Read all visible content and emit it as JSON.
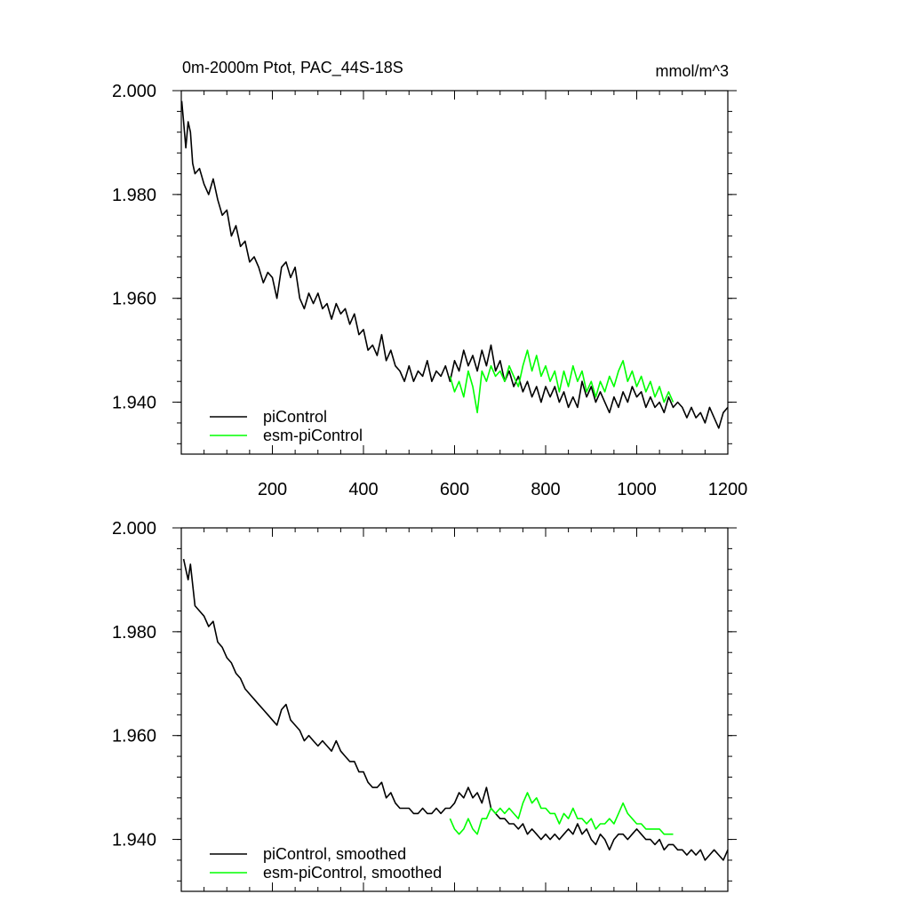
{
  "chart_data": [
    {
      "id": "raw",
      "type": "line",
      "title_left": "0m-2000m Ptot, PAC_44S-18S",
      "title_right": "mmol/m^3",
      "xlim": [
        0,
        1200
      ],
      "ylim": [
        1.93,
        2.0
      ],
      "xticks": [
        200,
        400,
        600,
        800,
        1000,
        1200
      ],
      "xtick_labels": [
        "200",
        "400",
        "600",
        "800",
        "1000",
        "1200"
      ],
      "yticks": [
        2.0,
        1.98,
        1.96,
        1.94
      ],
      "ytick_labels": [
        "2.000",
        "1.980",
        "1.960",
        "1.940"
      ],
      "grid": false,
      "legend_position": "bottom-left",
      "series": [
        {
          "name": "piControl",
          "color": "#000000",
          "x": [
            1,
            5,
            10,
            15,
            20,
            25,
            30,
            40,
            50,
            60,
            70,
            80,
            90,
            100,
            110,
            120,
            130,
            140,
            150,
            160,
            170,
            180,
            190,
            200,
            210,
            215,
            220,
            230,
            240,
            250,
            260,
            270,
            280,
            290,
            300,
            310,
            320,
            330,
            340,
            350,
            360,
            370,
            380,
            390,
            400,
            410,
            420,
            430,
            440,
            450,
            460,
            470,
            480,
            490,
            500,
            510,
            520,
            530,
            540,
            550,
            560,
            570,
            580,
            590,
            600,
            610,
            620,
            630,
            640,
            650,
            660,
            670,
            680,
            690,
            700,
            710,
            720,
            730,
            740,
            750,
            760,
            770,
            780,
            790,
            800,
            810,
            820,
            830,
            840,
            850,
            860,
            870,
            880,
            890,
            900,
            910,
            920,
            930,
            940,
            950,
            960,
            970,
            980,
            990,
            1000,
            1010,
            1020,
            1030,
            1040,
            1050,
            1060,
            1070,
            1080,
            1090,
            1100,
            1110,
            1120,
            1130,
            1140,
            1150,
            1160,
            1170,
            1180,
            1190,
            1200
          ],
          "values": [
            1.998,
            1.994,
            1.989,
            1.994,
            1.992,
            1.986,
            1.984,
            1.985,
            1.982,
            1.98,
            1.983,
            1.979,
            1.976,
            1.977,
            1.972,
            1.974,
            1.97,
            1.971,
            1.967,
            1.968,
            1.966,
            1.963,
            1.965,
            1.964,
            1.96,
            1.963,
            1.966,
            1.967,
            1.964,
            1.966,
            1.96,
            1.958,
            1.961,
            1.959,
            1.961,
            1.958,
            1.959,
            1.956,
            1.959,
            1.957,
            1.958,
            1.955,
            1.957,
            1.953,
            1.954,
            1.95,
            1.951,
            1.949,
            1.953,
            1.948,
            1.95,
            1.947,
            1.946,
            1.944,
            1.947,
            1.944,
            1.946,
            1.945,
            1.948,
            1.944,
            1.946,
            1.945,
            1.947,
            1.944,
            1.948,
            1.946,
            1.95,
            1.947,
            1.949,
            1.946,
            1.95,
            1.947,
            1.951,
            1.946,
            1.948,
            1.944,
            1.946,
            1.943,
            1.945,
            1.942,
            1.944,
            1.941,
            1.943,
            1.94,
            1.943,
            1.941,
            1.943,
            1.94,
            1.942,
            1.939,
            1.941,
            1.939,
            1.944,
            1.941,
            1.943,
            1.94,
            1.942,
            1.94,
            1.938,
            1.941,
            1.939,
            1.942,
            1.94,
            1.943,
            1.941,
            1.942,
            1.939,
            1.941,
            1.939,
            1.94,
            1.938,
            1.941,
            1.939,
            1.94,
            1.939,
            1.937,
            1.939,
            1.937,
            1.938,
            1.936,
            1.939,
            1.937,
            1.935,
            1.938,
            1.939
          ]
        },
        {
          "name": "esm-piControl",
          "color": "#00ff00",
          "x": [
            590,
            600,
            610,
            620,
            630,
            640,
            650,
            660,
            670,
            680,
            690,
            700,
            710,
            720,
            730,
            740,
            750,
            760,
            770,
            780,
            790,
            800,
            810,
            820,
            830,
            840,
            850,
            860,
            870,
            880,
            890,
            900,
            910,
            920,
            930,
            940,
            950,
            960,
            970,
            980,
            990,
            1000,
            1010,
            1020,
            1030,
            1040,
            1050,
            1060,
            1070,
            1080
          ],
          "values": [
            1.945,
            1.942,
            1.944,
            1.941,
            1.946,
            1.943,
            1.938,
            1.946,
            1.944,
            1.947,
            1.945,
            1.946,
            1.944,
            1.947,
            1.945,
            1.943,
            1.947,
            1.95,
            1.946,
            1.949,
            1.945,
            1.947,
            1.944,
            1.946,
            1.942,
            1.946,
            1.943,
            1.947,
            1.944,
            1.946,
            1.942,
            1.944,
            1.941,
            1.944,
            1.942,
            1.945,
            1.943,
            1.946,
            1.948,
            1.944,
            1.946,
            1.943,
            1.945,
            1.942,
            1.944,
            1.941,
            1.943,
            1.94,
            1.942,
            1.94
          ]
        }
      ]
    },
    {
      "id": "smoothed",
      "type": "line",
      "xlim": [
        0,
        1200
      ],
      "ylim": [
        1.93,
        2.0
      ],
      "xticks": [
        200,
        400,
        600,
        800,
        1000,
        1200
      ],
      "yticks": [
        2.0,
        1.98,
        1.96,
        1.94
      ],
      "ytick_labels": [
        "2.000",
        "1.980",
        "1.960",
        "1.940"
      ],
      "grid": false,
      "legend_position": "bottom-left",
      "series": [
        {
          "name": "piControl, smoothed",
          "color": "#000000",
          "x": [
            5,
            10,
            15,
            20,
            30,
            40,
            50,
            60,
            70,
            80,
            90,
            100,
            110,
            120,
            130,
            140,
            150,
            160,
            170,
            180,
            190,
            200,
            210,
            220,
            230,
            240,
            250,
            260,
            270,
            280,
            290,
            300,
            310,
            320,
            330,
            340,
            350,
            360,
            370,
            380,
            390,
            400,
            410,
            420,
            430,
            440,
            450,
            460,
            470,
            480,
            490,
            500,
            510,
            520,
            530,
            540,
            550,
            560,
            570,
            580,
            590,
            600,
            610,
            620,
            630,
            640,
            650,
            660,
            670,
            680,
            690,
            700,
            710,
            720,
            730,
            740,
            750,
            760,
            770,
            780,
            790,
            800,
            810,
            820,
            830,
            840,
            850,
            860,
            870,
            880,
            890,
            900,
            910,
            920,
            930,
            940,
            950,
            960,
            970,
            980,
            990,
            1000,
            1010,
            1020,
            1030,
            1040,
            1050,
            1060,
            1070,
            1080,
            1090,
            1100,
            1110,
            1120,
            1130,
            1140,
            1150,
            1160,
            1170,
            1180,
            1190,
            1200
          ],
          "values": [
            1.994,
            1.992,
            1.99,
            1.993,
            1.985,
            1.984,
            1.983,
            1.981,
            1.982,
            1.978,
            1.977,
            1.975,
            1.974,
            1.972,
            1.971,
            1.969,
            1.968,
            1.967,
            1.966,
            1.965,
            1.964,
            1.963,
            1.962,
            1.965,
            1.966,
            1.963,
            1.962,
            1.961,
            1.959,
            1.96,
            1.959,
            1.958,
            1.959,
            1.958,
            1.957,
            1.959,
            1.957,
            1.956,
            1.955,
            1.955,
            1.953,
            1.953,
            1.951,
            1.95,
            1.95,
            1.951,
            1.948,
            1.949,
            1.947,
            1.946,
            1.946,
            1.946,
            1.945,
            1.945,
            1.946,
            1.945,
            1.945,
            1.946,
            1.945,
            1.946,
            1.946,
            1.947,
            1.949,
            1.948,
            1.95,
            1.948,
            1.949,
            1.947,
            1.95,
            1.946,
            1.945,
            1.944,
            1.944,
            1.943,
            1.943,
            1.942,
            1.943,
            1.941,
            1.942,
            1.941,
            1.94,
            1.941,
            1.94,
            1.941,
            1.94,
            1.941,
            1.942,
            1.941,
            1.943,
            1.941,
            1.942,
            1.94,
            1.939,
            1.941,
            1.94,
            1.938,
            1.94,
            1.941,
            1.941,
            1.94,
            1.941,
            1.942,
            1.941,
            1.94,
            1.94,
            1.939,
            1.94,
            1.938,
            1.939,
            1.939,
            1.938,
            1.938,
            1.937,
            1.938,
            1.937,
            1.938,
            1.936,
            1.937,
            1.938,
            1.937,
            1.936,
            1.938
          ]
        },
        {
          "name": "esm-piControl, smoothed",
          "color": "#00ff00",
          "x": [
            590,
            600,
            610,
            620,
            630,
            640,
            650,
            660,
            670,
            680,
            690,
            700,
            710,
            720,
            730,
            740,
            750,
            760,
            770,
            780,
            790,
            800,
            810,
            820,
            830,
            840,
            850,
            860,
            870,
            880,
            890,
            900,
            910,
            920,
            930,
            940,
            950,
            960,
            970,
            980,
            990,
            1000,
            1010,
            1020,
            1030,
            1040,
            1050,
            1060,
            1070,
            1080
          ],
          "values": [
            1.944,
            1.942,
            1.941,
            1.942,
            1.944,
            1.942,
            1.941,
            1.944,
            1.944,
            1.946,
            1.945,
            1.946,
            1.945,
            1.946,
            1.945,
            1.944,
            1.947,
            1.949,
            1.947,
            1.948,
            1.946,
            1.946,
            1.945,
            1.945,
            1.943,
            1.945,
            1.944,
            1.946,
            1.944,
            1.944,
            1.943,
            1.944,
            1.942,
            1.943,
            1.943,
            1.944,
            1.943,
            1.945,
            1.947,
            1.945,
            1.944,
            1.943,
            1.943,
            1.942,
            1.942,
            1.942,
            1.942,
            1.941,
            1.941,
            1.941
          ]
        }
      ]
    }
  ]
}
